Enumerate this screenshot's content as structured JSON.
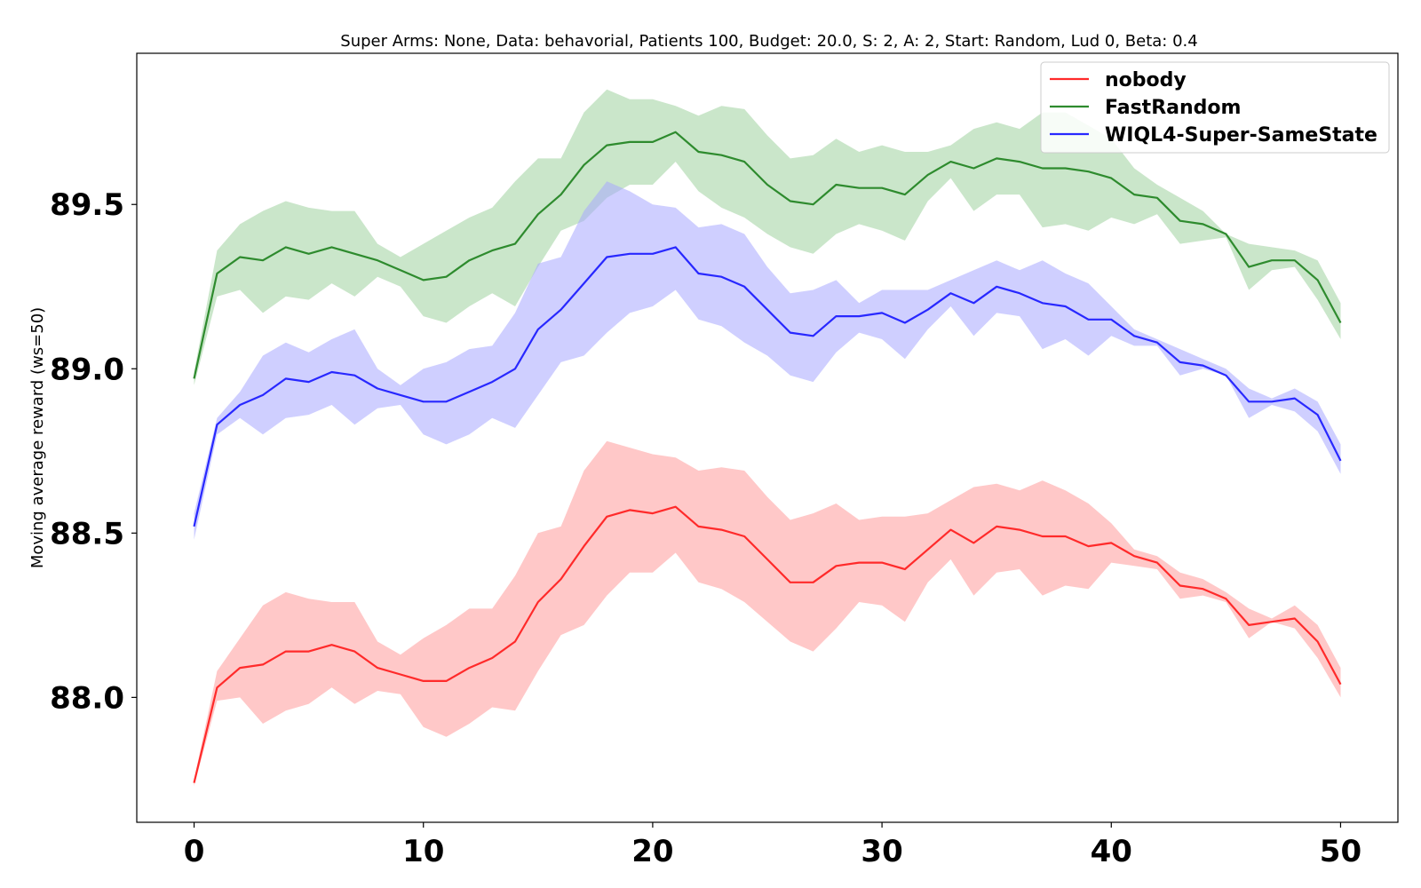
{
  "chart_data": {
    "type": "line",
    "title": "Super Arms: None, Data: behavorial, Patients 100, Budget: 20.0, S: 2, A: 2, Start: Random, Lud 0, Beta: 0.4",
    "xlabel": "",
    "ylabel": "Moving average reward (ws=50)",
    "xlim": [
      -2.5,
      52.5
    ],
    "ylim": [
      87.62,
      89.96
    ],
    "x_ticks": [
      0,
      10,
      20,
      30,
      40,
      50
    ],
    "x_tick_labels": [
      "0",
      "10",
      "20",
      "30",
      "40",
      "50"
    ],
    "y_ticks": [
      88.0,
      88.5,
      89.0,
      89.5
    ],
    "y_tick_labels": [
      "88.0",
      "88.5",
      "89.0",
      "89.5"
    ],
    "grid": false,
    "legend_position": "top-right",
    "x": [
      0,
      1,
      2,
      3,
      4,
      5,
      6,
      7,
      8,
      9,
      10,
      11,
      12,
      13,
      14,
      15,
      16,
      17,
      18,
      19,
      20,
      21,
      22,
      23,
      24,
      25,
      26,
      27,
      28,
      29,
      30,
      31,
      32,
      33,
      34,
      35,
      36,
      37,
      38,
      39,
      40,
      41,
      42,
      43,
      44,
      45,
      46,
      47,
      48,
      49,
      50
    ],
    "series": [
      {
        "name": "nobody",
        "color": "#ff2a2a",
        "fill_color": "#ff9a9a",
        "values": [
          87.74,
          88.03,
          88.09,
          88.1,
          88.14,
          88.14,
          88.16,
          88.14,
          88.09,
          88.07,
          88.05,
          88.05,
          88.09,
          88.12,
          88.17,
          88.29,
          88.36,
          88.46,
          88.55,
          88.57,
          88.56,
          88.58,
          88.52,
          88.51,
          88.49,
          88.42,
          88.35,
          88.35,
          88.4,
          88.41,
          88.41,
          88.39,
          88.45,
          88.51,
          88.47,
          88.52,
          88.51,
          88.49,
          88.49,
          88.46,
          88.47,
          88.43,
          88.41,
          88.34,
          88.33,
          88.3,
          88.22,
          88.23,
          88.24,
          88.17,
          88.04
        ],
        "lower": [
          87.73,
          87.99,
          88.0,
          87.92,
          87.96,
          87.98,
          88.03,
          87.98,
          88.02,
          88.01,
          87.91,
          87.88,
          87.92,
          87.97,
          87.96,
          88.08,
          88.19,
          88.22,
          88.31,
          88.38,
          88.38,
          88.44,
          88.35,
          88.33,
          88.29,
          88.23,
          88.17,
          88.14,
          88.21,
          88.29,
          88.28,
          88.23,
          88.35,
          88.42,
          88.31,
          88.38,
          88.39,
          88.31,
          88.34,
          88.33,
          88.41,
          88.4,
          88.39,
          88.3,
          88.31,
          88.29,
          88.18,
          88.23,
          88.21,
          88.12,
          88.0
        ],
        "upper": [
          87.75,
          88.08,
          88.18,
          88.28,
          88.32,
          88.3,
          88.29,
          88.29,
          88.17,
          88.13,
          88.18,
          88.22,
          88.27,
          88.27,
          88.37,
          88.5,
          88.52,
          88.69,
          88.78,
          88.76,
          88.74,
          88.73,
          88.69,
          88.7,
          88.69,
          88.61,
          88.54,
          88.56,
          88.59,
          88.54,
          88.55,
          88.55,
          88.56,
          88.6,
          88.64,
          88.65,
          88.63,
          88.66,
          88.63,
          88.59,
          88.53,
          88.45,
          88.43,
          88.38,
          88.36,
          88.32,
          88.27,
          88.24,
          88.28,
          88.22,
          88.09
        ]
      },
      {
        "name": "FastRandom",
        "color": "#2e8b2e",
        "fill_color": "#9fd29f",
        "values": [
          88.97,
          89.29,
          89.34,
          89.33,
          89.37,
          89.35,
          89.37,
          89.35,
          89.33,
          89.3,
          89.27,
          89.28,
          89.33,
          89.36,
          89.38,
          89.47,
          89.53,
          89.62,
          89.68,
          89.69,
          89.69,
          89.72,
          89.66,
          89.65,
          89.63,
          89.56,
          89.51,
          89.5,
          89.56,
          89.55,
          89.55,
          89.53,
          89.59,
          89.63,
          89.61,
          89.64,
          89.63,
          89.61,
          89.61,
          89.6,
          89.58,
          89.53,
          89.52,
          89.45,
          89.44,
          89.41,
          89.31,
          89.33,
          89.33,
          89.27,
          89.14
        ],
        "lower": [
          88.95,
          89.22,
          89.24,
          89.17,
          89.22,
          89.21,
          89.26,
          89.22,
          89.28,
          89.25,
          89.16,
          89.14,
          89.19,
          89.23,
          89.19,
          89.31,
          89.42,
          89.45,
          89.52,
          89.56,
          89.56,
          89.63,
          89.54,
          89.49,
          89.46,
          89.41,
          89.37,
          89.35,
          89.41,
          89.44,
          89.42,
          89.39,
          89.51,
          89.58,
          89.48,
          89.53,
          89.53,
          89.43,
          89.44,
          89.42,
          89.46,
          89.44,
          89.47,
          89.38,
          89.39,
          89.4,
          89.24,
          89.3,
          89.31,
          89.21,
          89.09
        ],
        "upper": [
          88.99,
          89.36,
          89.44,
          89.48,
          89.51,
          89.49,
          89.48,
          89.48,
          89.38,
          89.34,
          89.38,
          89.42,
          89.46,
          89.49,
          89.57,
          89.64,
          89.64,
          89.78,
          89.85,
          89.82,
          89.82,
          89.8,
          89.77,
          89.8,
          89.79,
          89.71,
          89.64,
          89.65,
          89.7,
          89.66,
          89.68,
          89.66,
          89.66,
          89.68,
          89.73,
          89.75,
          89.73,
          89.78,
          89.78,
          89.74,
          89.7,
          89.61,
          89.56,
          89.52,
          89.48,
          89.41,
          89.38,
          89.37,
          89.36,
          89.33,
          89.2
        ]
      },
      {
        "name": "WIQL4-Super-SameState",
        "color": "#2828ff",
        "fill_color": "#a8a8ff",
        "values": [
          88.52,
          88.83,
          88.89,
          88.92,
          88.97,
          88.96,
          88.99,
          88.98,
          88.94,
          88.92,
          88.9,
          88.9,
          88.93,
          88.96,
          89.0,
          89.12,
          89.18,
          89.26,
          89.34,
          89.35,
          89.35,
          89.37,
          89.29,
          89.28,
          89.25,
          89.18,
          89.11,
          89.1,
          89.16,
          89.16,
          89.17,
          89.14,
          89.18,
          89.23,
          89.2,
          89.25,
          89.23,
          89.2,
          89.19,
          89.15,
          89.15,
          89.1,
          89.08,
          89.02,
          89.01,
          88.98,
          88.9,
          88.9,
          88.91,
          88.86,
          88.72
        ],
        "lower": [
          88.48,
          88.8,
          88.85,
          88.8,
          88.85,
          88.86,
          88.89,
          88.83,
          88.88,
          88.89,
          88.8,
          88.77,
          88.8,
          88.85,
          88.82,
          88.92,
          89.02,
          89.04,
          89.11,
          89.17,
          89.19,
          89.24,
          89.15,
          89.13,
          89.08,
          89.04,
          88.98,
          88.96,
          89.05,
          89.11,
          89.09,
          89.03,
          89.12,
          89.19,
          89.1,
          89.17,
          89.16,
          89.06,
          89.09,
          89.04,
          89.1,
          89.07,
          89.07,
          88.98,
          89.0,
          88.98,
          88.85,
          88.89,
          88.87,
          88.81,
          88.68
        ],
        "upper": [
          88.56,
          88.85,
          88.93,
          89.04,
          89.08,
          89.05,
          89.09,
          89.12,
          89.0,
          88.95,
          89.0,
          89.02,
          89.06,
          89.07,
          89.17,
          89.32,
          89.34,
          89.48,
          89.57,
          89.54,
          89.5,
          89.49,
          89.43,
          89.44,
          89.41,
          89.31,
          89.23,
          89.24,
          89.27,
          89.2,
          89.24,
          89.24,
          89.24,
          89.27,
          89.3,
          89.33,
          89.3,
          89.33,
          89.29,
          89.26,
          89.19,
          89.12,
          89.09,
          89.06,
          89.03,
          89.0,
          88.94,
          88.91,
          88.94,
          88.9,
          88.77
        ]
      }
    ]
  }
}
